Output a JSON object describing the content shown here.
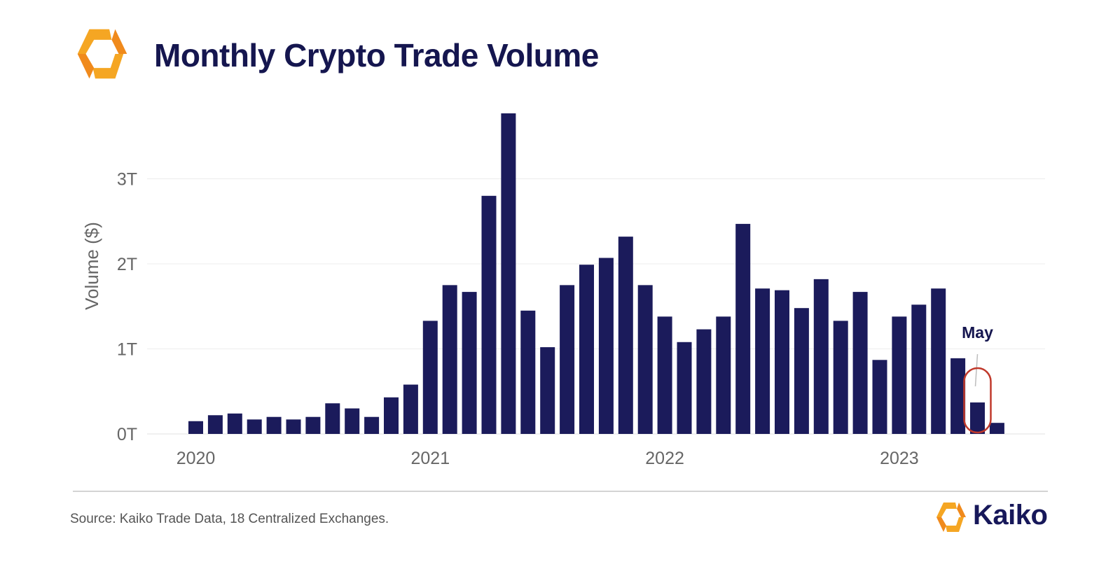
{
  "header": {
    "title": "Monthly Crypto Trade Volume"
  },
  "colors": {
    "bar": "#1b1b5b",
    "title": "#15164f",
    "gridline": "#ececec",
    "tick_label": "#666666",
    "highlight_ring": "#c0392b",
    "logo_orange": "#f5a623"
  },
  "chart_data": {
    "type": "bar",
    "title": "Monthly Crypto Trade Volume",
    "xlabel": "",
    "ylabel": "Volume ($)",
    "ylim": [
      0,
      3.8
    ],
    "y_unit": "trillion USD",
    "y_ticks": [
      {
        "value": 0,
        "label": "0T"
      },
      {
        "value": 1,
        "label": "1T"
      },
      {
        "value": 2,
        "label": "2T"
      },
      {
        "value": 3,
        "label": "3T"
      }
    ],
    "x_tick_labels": [
      "2020",
      "2021",
      "2022",
      "2023"
    ],
    "grid": true,
    "legend": "none",
    "categories": [
      "2020-01",
      "2020-02",
      "2020-03",
      "2020-04",
      "2020-05",
      "2020-06",
      "2020-07",
      "2020-08",
      "2020-09",
      "2020-10",
      "2020-11",
      "2020-12",
      "2021-01",
      "2021-02",
      "2021-03",
      "2021-04",
      "2021-05",
      "2021-06",
      "2021-07",
      "2021-08",
      "2021-09",
      "2021-10",
      "2021-11",
      "2021-12",
      "2022-01",
      "2022-02",
      "2022-03",
      "2022-04",
      "2022-05",
      "2022-06",
      "2022-07",
      "2022-08",
      "2022-09",
      "2022-10",
      "2022-11",
      "2022-12",
      "2023-01",
      "2023-02",
      "2023-03",
      "2023-04",
      "2023-05",
      "2023-06"
    ],
    "values": [
      0.15,
      0.22,
      0.24,
      0.17,
      0.2,
      0.17,
      0.2,
      0.36,
      0.3,
      0.2,
      0.43,
      0.58,
      1.33,
      1.75,
      1.67,
      2.8,
      3.77,
      1.45,
      1.02,
      1.75,
      1.99,
      2.07,
      2.32,
      1.75,
      1.38,
      1.08,
      1.23,
      1.38,
      2.47,
      1.71,
      1.69,
      1.48,
      1.82,
      1.33,
      1.67,
      0.87,
      1.38,
      1.52,
      1.71,
      0.89,
      0.37,
      0.13
    ],
    "annotations": [
      {
        "text": "May",
        "category": "2023-05"
      }
    ]
  },
  "footer": {
    "source": "Source: Kaiko Trade Data, 18 Centralized Exchanges.",
    "brand": "Kaiko"
  }
}
